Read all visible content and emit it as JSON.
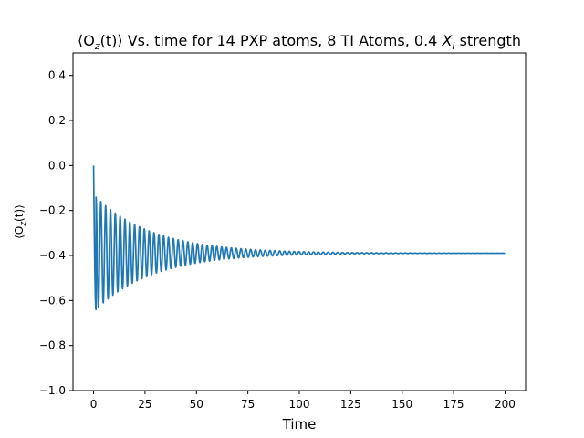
{
  "chart_data": {
    "type": "line",
    "title_main": "⟨O",
    "title_sub": "z",
    "title_rest": "(t)⟩ Vs. time for 14 PXP atoms, 8 TI Atoms, 0.4 ",
    "title_x": "X",
    "title_i": "i",
    "title_tail": " strength",
    "xlabel": "Time",
    "ylabel_main": "⟨O",
    "ylabel_sub": "z",
    "ylabel_rest": "(t)⟩",
    "xlim": [
      -10,
      210
    ],
    "ylim": [
      -1.0,
      0.5
    ],
    "xticks": [
      0,
      25,
      50,
      75,
      100,
      125,
      150,
      175,
      200
    ],
    "yticks": [
      -1.0,
      -0.8,
      -0.6,
      -0.4,
      -0.2,
      0.0,
      0.2,
      0.4
    ],
    "xtick_labels": [
      "0",
      "25",
      "50",
      "75",
      "100",
      "125",
      "150",
      "175",
      "200"
    ],
    "ytick_labels": [
      "−1.0",
      "−0.8",
      "−0.6",
      "−0.4",
      "−0.2",
      "0.0",
      "0.2",
      "0.4"
    ],
    "series": [
      {
        "color": "#1f77b4",
        "model": {
          "start": 0.0,
          "baseline": -0.39,
          "first_min": -0.64,
          "oscillation_period": 2.35,
          "decay_time": 28,
          "t_end": 200
        }
      }
    ],
    "grid": false
  }
}
